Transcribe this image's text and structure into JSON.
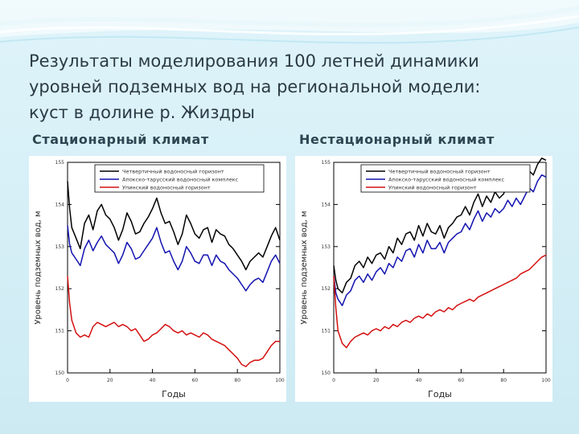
{
  "title_lines": [
    "Результаты моделирования 100 летней динамики",
    "уровней подземных вод на региональной модели:",
    "куст в долине р. Жиздры"
  ],
  "colors": {
    "background": "#d6f0f7",
    "series1": "#000000",
    "series2": "#1212b0",
    "series3": "#d41010"
  },
  "chart_data": [
    {
      "type": "line",
      "title": "Стационарный климат",
      "xlabel": "Годы",
      "ylabel": "Уровень подземных вод, м",
      "xlim": [
        0,
        100
      ],
      "ylim": [
        150,
        155
      ],
      "xticks": [
        "0",
        "20",
        "40",
        "60",
        "80",
        "100"
      ],
      "yticks": [
        "150",
        "151",
        "152",
        "153",
        "154",
        "155"
      ],
      "x": [
        0,
        1,
        2,
        4,
        6,
        8,
        10,
        12,
        14,
        16,
        18,
        20,
        22,
        24,
        26,
        28,
        30,
        32,
        34,
        36,
        38,
        40,
        42,
        44,
        46,
        48,
        50,
        52,
        54,
        56,
        58,
        60,
        62,
        64,
        66,
        68,
        70,
        72,
        74,
        76,
        78,
        80,
        82,
        84,
        86,
        88,
        90,
        92,
        94,
        96,
        98,
        100
      ],
      "series": [
        {
          "name": "Четвертичный водоносный горизонт",
          "color": "#000000",
          "values": [
            154.55,
            153.9,
            153.45,
            153.2,
            152.95,
            153.55,
            153.75,
            153.4,
            153.85,
            154.0,
            153.75,
            153.65,
            153.45,
            153.15,
            153.4,
            153.8,
            153.6,
            153.3,
            153.35,
            153.55,
            153.7,
            153.9,
            154.15,
            153.8,
            153.55,
            153.6,
            153.35,
            153.05,
            153.3,
            153.75,
            153.55,
            153.3,
            153.2,
            153.4,
            153.45,
            153.1,
            153.4,
            153.3,
            153.25,
            153.05,
            152.95,
            152.8,
            152.65,
            152.45,
            152.65,
            152.75,
            152.85,
            152.75,
            153.0,
            153.25,
            153.45,
            153.15
          ]
        },
        {
          "name": "Апокско-тарусский водоносный комплекс",
          "color": "#1212b0",
          "values": [
            153.5,
            153.05,
            152.85,
            152.7,
            152.55,
            152.95,
            153.15,
            152.9,
            153.1,
            153.25,
            153.05,
            152.95,
            152.85,
            152.6,
            152.8,
            153.1,
            152.95,
            152.7,
            152.75,
            152.9,
            153.05,
            153.2,
            153.45,
            153.1,
            152.85,
            152.9,
            152.65,
            152.45,
            152.65,
            153.0,
            152.85,
            152.65,
            152.6,
            152.8,
            152.8,
            152.55,
            152.8,
            152.65,
            152.6,
            152.45,
            152.35,
            152.25,
            152.1,
            151.95,
            152.1,
            152.2,
            152.25,
            152.15,
            152.4,
            152.65,
            152.8,
            152.6
          ]
        },
        {
          "name": "Упинский водоносный горизонт",
          "color": "#d41010",
          "values": [
            152.3,
            151.65,
            151.25,
            150.95,
            150.85,
            150.9,
            150.85,
            151.1,
            151.2,
            151.15,
            151.1,
            151.15,
            151.2,
            151.1,
            151.15,
            151.1,
            151.0,
            151.05,
            150.9,
            150.75,
            150.8,
            150.9,
            150.95,
            151.05,
            151.15,
            151.1,
            151.0,
            150.95,
            151.0,
            150.9,
            150.95,
            150.9,
            150.85,
            150.95,
            150.9,
            150.8,
            150.75,
            150.7,
            150.65,
            150.55,
            150.45,
            150.35,
            150.2,
            150.15,
            150.25,
            150.3,
            150.3,
            150.35,
            150.5,
            150.65,
            150.75,
            150.75
          ]
        }
      ]
    },
    {
      "type": "line",
      "title": "Нестационарный климат",
      "xlabel": "Годы",
      "ylabel": "Уровень подземных вод, м",
      "xlim": [
        0,
        100
      ],
      "ylim": [
        150,
        155
      ],
      "xticks": [
        "0",
        "20",
        "40",
        "60",
        "80",
        "100"
      ],
      "yticks": [
        "150",
        "151",
        "152",
        "153",
        "154",
        "155"
      ],
      "x": [
        0,
        1,
        2,
        4,
        6,
        8,
        10,
        12,
        14,
        16,
        18,
        20,
        22,
        24,
        26,
        28,
        30,
        32,
        34,
        36,
        38,
        40,
        42,
        44,
        46,
        48,
        50,
        52,
        54,
        56,
        58,
        60,
        62,
        64,
        66,
        68,
        70,
        72,
        74,
        76,
        78,
        80,
        82,
        84,
        86,
        88,
        90,
        92,
        94,
        96,
        98,
        100
      ],
      "series": [
        {
          "name": "Четвертичный водоносный горизонт",
          "color": "#000000",
          "values": [
            152.55,
            152.2,
            152.0,
            151.9,
            152.15,
            152.25,
            152.55,
            152.65,
            152.5,
            152.75,
            152.6,
            152.8,
            152.85,
            152.7,
            153.0,
            152.85,
            153.2,
            153.05,
            153.3,
            153.35,
            153.15,
            153.5,
            153.25,
            153.55,
            153.35,
            153.3,
            153.5,
            153.2,
            153.45,
            153.55,
            153.7,
            153.75,
            153.95,
            153.75,
            154.05,
            154.25,
            153.95,
            154.2,
            154.05,
            154.3,
            154.15,
            154.25,
            154.5,
            154.3,
            154.55,
            154.35,
            154.6,
            154.8,
            154.7,
            154.95,
            155.1,
            155.05
          ]
        },
        {
          "name": "Апокско-тарусский водоносный комплекс",
          "color": "#1212b0",
          "values": [
            152.3,
            151.9,
            151.75,
            151.6,
            151.85,
            151.95,
            152.2,
            152.3,
            152.15,
            152.35,
            152.2,
            152.4,
            152.5,
            152.35,
            152.6,
            152.5,
            152.75,
            152.65,
            152.9,
            152.95,
            152.75,
            153.05,
            152.85,
            153.15,
            152.95,
            152.95,
            153.1,
            152.85,
            153.1,
            153.2,
            153.3,
            153.35,
            153.55,
            153.4,
            153.65,
            153.85,
            153.6,
            153.8,
            153.7,
            153.9,
            153.8,
            153.9,
            154.1,
            153.95,
            154.15,
            154.0,
            154.2,
            154.4,
            154.3,
            154.55,
            154.7,
            154.65
          ]
        },
        {
          "name": "Упинский водоносный горизонт",
          "color": "#d41010",
          "values": [
            152.3,
            151.55,
            151.0,
            150.7,
            150.6,
            150.75,
            150.85,
            150.9,
            150.95,
            150.9,
            151.0,
            151.05,
            151.0,
            151.1,
            151.05,
            151.15,
            151.1,
            151.2,
            151.25,
            151.2,
            151.3,
            151.35,
            151.3,
            151.4,
            151.35,
            151.45,
            151.5,
            151.45,
            151.55,
            151.5,
            151.6,
            151.65,
            151.7,
            151.75,
            151.7,
            151.8,
            151.85,
            151.9,
            151.95,
            152.0,
            152.05,
            152.1,
            152.15,
            152.2,
            152.25,
            152.35,
            152.4,
            152.45,
            152.55,
            152.65,
            152.75,
            152.8
          ]
        }
      ]
    }
  ]
}
